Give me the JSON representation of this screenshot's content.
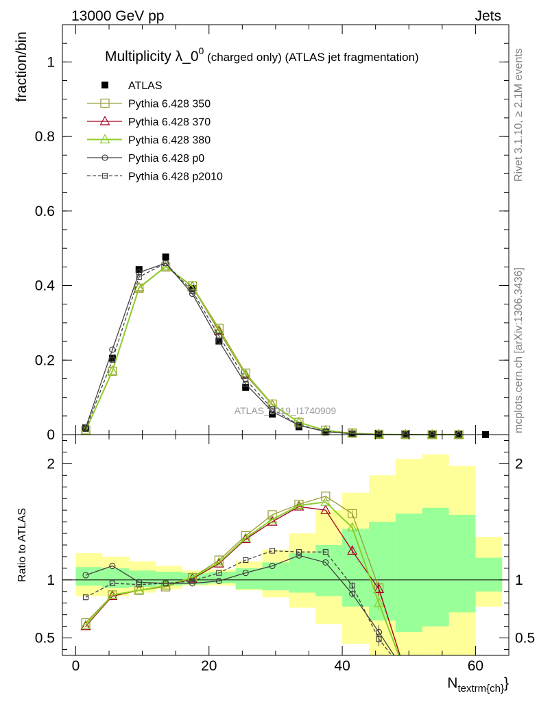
{
  "header": {
    "left": "13000 GeV pp",
    "right": "Jets",
    "plot_title": "Multiplicity λ_0",
    "plot_title_sup": "0",
    "plot_title_tail": " (charged only) (ATLAS jet fragmentation)",
    "side_top": "Rivet 3.1.10, ≥ 2.1M events",
    "side_bottom": "mcplots.cern.ch [arXiv:1306.3436]",
    "watermark": "ATLAS_2019_I1740909"
  },
  "chart_data": [
    {
      "type": "line",
      "title": "Multiplicity λ_0^0 (charged only) (ATLAS jet fragmentation)",
      "ylabel": "fraction/bin",
      "xlabel": "N_textrm{ch}",
      "xlim": [
        -2,
        65
      ],
      "ylim": [
        0,
        1.1
      ],
      "yscale": "linear",
      "legend_position": "top-left",
      "x_ticks": [
        0,
        20,
        40,
        60
      ],
      "y_ticks": [
        0,
        0.2,
        0.4,
        0.6,
        0.8,
        1
      ],
      "x_tick_labels": [
        "0",
        "20",
        "40",
        "60"
      ],
      "y_tick_labels": [
        "0",
        "0.2",
        "0.4",
        "0.6",
        "0.8",
        "1"
      ],
      "x": [
        1.5,
        5.5,
        9.5,
        13.5,
        17.5,
        21.5,
        25.5,
        29.5,
        33.5,
        37.5,
        41.5,
        45.5,
        49.5,
        53.5,
        57.5,
        61.5
      ],
      "series": [
        {
          "name": "ATLAS",
          "color": "#000000",
          "marker": "filled-square",
          "values": [
            0.018,
            0.205,
            0.443,
            0.477,
            0.392,
            0.251,
            0.127,
            0.055,
            0.021,
            0.007,
            0.002,
            0.0008,
            0.0003,
            0.0001,
            0.0001,
            0.0001
          ]
        },
        {
          "name": "Pythia 6.428 350",
          "color": "#9a9a32",
          "marker": "open-square",
          "values": [
            0.011,
            0.17,
            0.393,
            0.45,
            0.399,
            0.285,
            0.165,
            0.082,
            0.033,
            0.012,
            0.004,
            0.001,
            0.0003,
            0.0001,
            0.0,
            0.0
          ]
        },
        {
          "name": "Pythia 6.428 370",
          "color": "#a0001e",
          "marker": "open-triangle",
          "values": [
            0.011,
            0.171,
            0.395,
            0.451,
            0.397,
            0.278,
            0.16,
            0.08,
            0.033,
            0.011,
            0.003,
            0.0007,
            0.0002,
            0.0,
            0.0,
            0.0
          ]
        },
        {
          "name": "Pythia 6.428 380",
          "color": "#8ccd2a",
          "marker": "open-triangle",
          "values": [
            0.011,
            0.171,
            0.394,
            0.451,
            0.398,
            0.281,
            0.162,
            0.081,
            0.033,
            0.011,
            0.003,
            0.0007,
            0.0002,
            0.0,
            0.0,
            0.0
          ]
        },
        {
          "name": "Pythia 6.428 p0",
          "color": "#404040",
          "marker": "open-circle",
          "dash": "solid",
          "values": [
            0.019,
            0.228,
            0.435,
            0.46,
            0.378,
            0.251,
            0.136,
            0.062,
            0.025,
            0.008,
            0.002,
            0.0004,
            0.0001,
            0.0,
            0.0,
            0.0
          ]
        },
        {
          "name": "Pythia 6.428 p2010",
          "color": "#404040",
          "marker": "open-square",
          "dash": "dashed",
          "values": [
            0.015,
            0.2,
            0.423,
            0.46,
            0.385,
            0.265,
            0.148,
            0.069,
            0.026,
            0.009,
            0.002,
            0.0004,
            0.0001,
            0.0,
            0.0,
            0.0
          ]
        }
      ]
    },
    {
      "type": "line",
      "title": "",
      "ylabel": "Ratio to ATLAS",
      "xlabel": "N_textrm{ch}",
      "xlim": [
        -2,
        65
      ],
      "ylim": [
        0.35,
        2.25
      ],
      "yscale": "linear",
      "reference_line": 1,
      "x_ticks": [
        0,
        20,
        40,
        60
      ],
      "y_ticks": [
        0.5,
        1,
        2
      ],
      "x_tick_labels": [
        "0",
        "20",
        "40",
        "60"
      ],
      "y_tick_labels": [
        "0.5",
        "1",
        "2"
      ],
      "band_edges": [
        0,
        4,
        8,
        12,
        16,
        20,
        24,
        28,
        32,
        36,
        40,
        44,
        48,
        52,
        56,
        60,
        64
      ],
      "yellow_band": {
        "lo": [
          0.86,
          0.86,
          0.89,
          0.92,
          0.95,
          0.95,
          0.91,
          0.85,
          0.76,
          0.62,
          0.45,
          0.35,
          0.35,
          0.35,
          0.35,
          0.77
        ],
        "hi": [
          1.23,
          1.2,
          1.16,
          1.12,
          1.08,
          1.09,
          1.16,
          1.26,
          1.4,
          1.6,
          1.75,
          1.9,
          2.04,
          2.08,
          1.98,
          1.37
        ]
      },
      "green_band": {
        "lo": [
          0.95,
          0.93,
          0.94,
          0.95,
          0.96,
          0.97,
          0.92,
          0.91,
          0.89,
          0.86,
          0.77,
          0.65,
          0.55,
          0.6,
          0.72,
          0.9
        ],
        "hi": [
          1.11,
          1.1,
          1.08,
          1.07,
          1.06,
          1.07,
          1.1,
          1.15,
          1.23,
          1.3,
          1.44,
          1.5,
          1.57,
          1.62,
          1.56,
          1.19
        ]
      },
      "x": [
        1.5,
        5.5,
        9.5,
        13.5,
        17.5,
        21.5,
        25.5,
        29.5,
        33.5,
        37.5,
        41.5,
        45.5,
        49.5
      ],
      "series": [
        {
          "name": "Pythia 6.428 350",
          "color": "#9a9a32",
          "marker": "open-square",
          "values": [
            0.63,
            0.87,
            0.91,
            0.94,
            1.02,
            1.17,
            1.38,
            1.56,
            1.65,
            1.72,
            1.57,
            0.93,
            0.2
          ]
        },
        {
          "name": "Pythia 6.428 370",
          "color": "#a0001e",
          "marker": "open-triangle",
          "values": [
            0.6,
            0.86,
            0.91,
            0.95,
            1.01,
            1.14,
            1.35,
            1.5,
            1.63,
            1.6,
            1.25,
            0.92,
            0.2
          ]
        },
        {
          "name": "Pythia 6.428 380",
          "color": "#8ccd2a",
          "marker": "open-triangle",
          "values": [
            0.61,
            0.87,
            0.91,
            0.95,
            1.02,
            1.15,
            1.36,
            1.52,
            1.64,
            1.67,
            1.45,
            0.8,
            0.2
          ]
        },
        {
          "name": "Pythia 6.428 p0",
          "color": "#404040",
          "marker": "open-circle",
          "dash": "solid",
          "values": [
            1.04,
            1.12,
            0.98,
            0.97,
            0.97,
            0.99,
            1.06,
            1.12,
            1.21,
            1.15,
            0.88,
            0.55,
            0.2
          ]
        },
        {
          "name": "Pythia 6.428 p2010",
          "color": "#404040",
          "marker": "open-square",
          "dash": "dashed",
          "values": [
            0.85,
            0.97,
            0.96,
            0.97,
            0.99,
            1.06,
            1.17,
            1.25,
            1.24,
            1.24,
            0.95,
            0.49,
            0.2
          ]
        }
      ]
    }
  ]
}
